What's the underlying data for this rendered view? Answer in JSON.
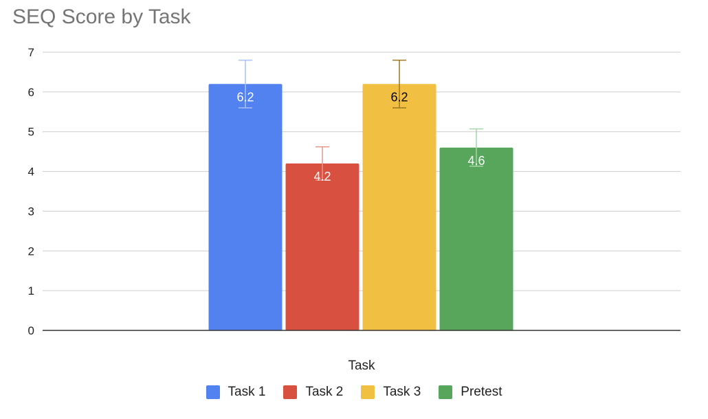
{
  "chart_data": {
    "type": "bar",
    "title": "SEQ Score by Task",
    "xlabel": "Task",
    "ylabel": "",
    "ylim": [
      0,
      7
    ],
    "yticks": [
      0,
      1,
      2,
      3,
      4,
      5,
      6,
      7
    ],
    "grid": true,
    "legend_position": "bottom",
    "series": [
      {
        "name": "Task 1",
        "value": 6.2,
        "label": "6.2",
        "error": 0.6,
        "color": "#5282f0",
        "label_color": "#ffffff",
        "error_color": "#a9c0f6"
      },
      {
        "name": "Task 2",
        "value": 4.2,
        "label": "4.2",
        "error": 0.42,
        "color": "#d85140",
        "label_color": "#ffffff",
        "error_color": "#e9978d"
      },
      {
        "name": "Task 3",
        "value": 6.2,
        "label": "6.2",
        "error": 0.6,
        "color": "#f1bf42",
        "label_color": "#000000",
        "error_color": "#9c7620"
      },
      {
        "name": "Pretest",
        "value": 4.6,
        "label": "4.6",
        "error": 0.47,
        "color": "#57a65c",
        "label_color": "#ffffff",
        "error_color": "#a6d6a9"
      }
    ]
  }
}
